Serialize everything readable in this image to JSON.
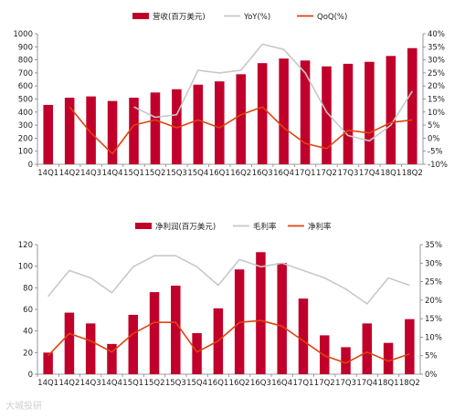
{
  "colors": {
    "bar": "#C0002A",
    "yoy_line": "#C8C8C8",
    "qoq_line": "#E0420F",
    "axis": "#7f7f7f",
    "text": "#222222"
  },
  "chart_data": [
    {
      "type": "bar",
      "categories": [
        "14Q1",
        "14Q2",
        "14Q3",
        "14Q4",
        "15Q1",
        "15Q2",
        "15Q3",
        "15Q4",
        "16Q1",
        "16Q2",
        "16Q3",
        "16Q4",
        "17Q1",
        "17Q2",
        "17Q3",
        "17Q4",
        "18Q1",
        "18Q2"
      ],
      "series": [
        {
          "name": "营收(百万美元)",
          "type": "bar",
          "axis": "left",
          "values": [
            455,
            510,
            520,
            485,
            510,
            550,
            575,
            610,
            635,
            690,
            775,
            810,
            795,
            750,
            770,
            785,
            830,
            890
          ]
        },
        {
          "name": "YoY(%)",
          "type": "line",
          "axis": "right",
          "values": [
            null,
            null,
            null,
            null,
            12,
            8,
            9,
            26,
            25,
            26,
            36,
            34,
            25,
            10,
            1,
            -1,
            5,
            18
          ]
        },
        {
          "name": "QoQ(%)",
          "type": "line",
          "axis": "right",
          "values": [
            null,
            12,
            2,
            -6,
            5,
            7,
            4,
            7,
            4,
            9,
            12,
            4,
            -2,
            -4,
            3,
            2,
            6,
            7
          ]
        }
      ],
      "ylim": [
        0,
        1000
      ],
      "y_ticks": [
        "0",
        "100",
        "200",
        "300",
        "400",
        "500",
        "600",
        "700",
        "800",
        "900",
        "1000"
      ],
      "y2lim": [
        -10,
        40
      ],
      "y2_ticks": [
        "-10%",
        "-5%",
        "0%",
        "5%",
        "10%",
        "15%",
        "20%",
        "25%",
        "30%",
        "35%",
        "40%"
      ],
      "legend": "top"
    },
    {
      "type": "bar",
      "categories": [
        "14Q1",
        "14Q2",
        "14Q3",
        "14Q4",
        "15Q1",
        "15Q2",
        "15Q3",
        "15Q4",
        "16Q1",
        "16Q2",
        "16Q3",
        "16Q4",
        "17Q1",
        "17Q2",
        "17Q3",
        "17Q4",
        "18Q1",
        "18Q2"
      ],
      "series": [
        {
          "name": "净利润(百万美元)",
          "type": "bar",
          "axis": "left",
          "values": [
            20,
            57,
            47,
            28,
            55,
            76,
            82,
            38,
            61,
            97,
            113,
            103,
            70,
            36,
            25,
            47,
            29,
            51
          ]
        },
        {
          "name": "毛利率",
          "type": "line",
          "axis": "right",
          "values": [
            21,
            28,
            26,
            22,
            29,
            32,
            32,
            29,
            24,
            31,
            29,
            30,
            28,
            26,
            23,
            19,
            26,
            24
          ]
        },
        {
          "name": "净利率",
          "type": "line",
          "axis": "right",
          "values": [
            5,
            11,
            9,
            6,
            11,
            14,
            14,
            6,
            9,
            14,
            14.5,
            13,
            9,
            5,
            3,
            6,
            3.5,
            5.5
          ]
        }
      ],
      "ylim": [
        0,
        120
      ],
      "y_ticks": [
        "0",
        "20",
        "40",
        "60",
        "80",
        "100",
        "120"
      ],
      "y2lim": [
        0,
        35
      ],
      "y2_ticks": [
        "0%",
        "5%",
        "10%",
        "15%",
        "20%",
        "25%",
        "30%",
        "35%"
      ],
      "legend": "top"
    }
  ],
  "watermark": "大城投研"
}
